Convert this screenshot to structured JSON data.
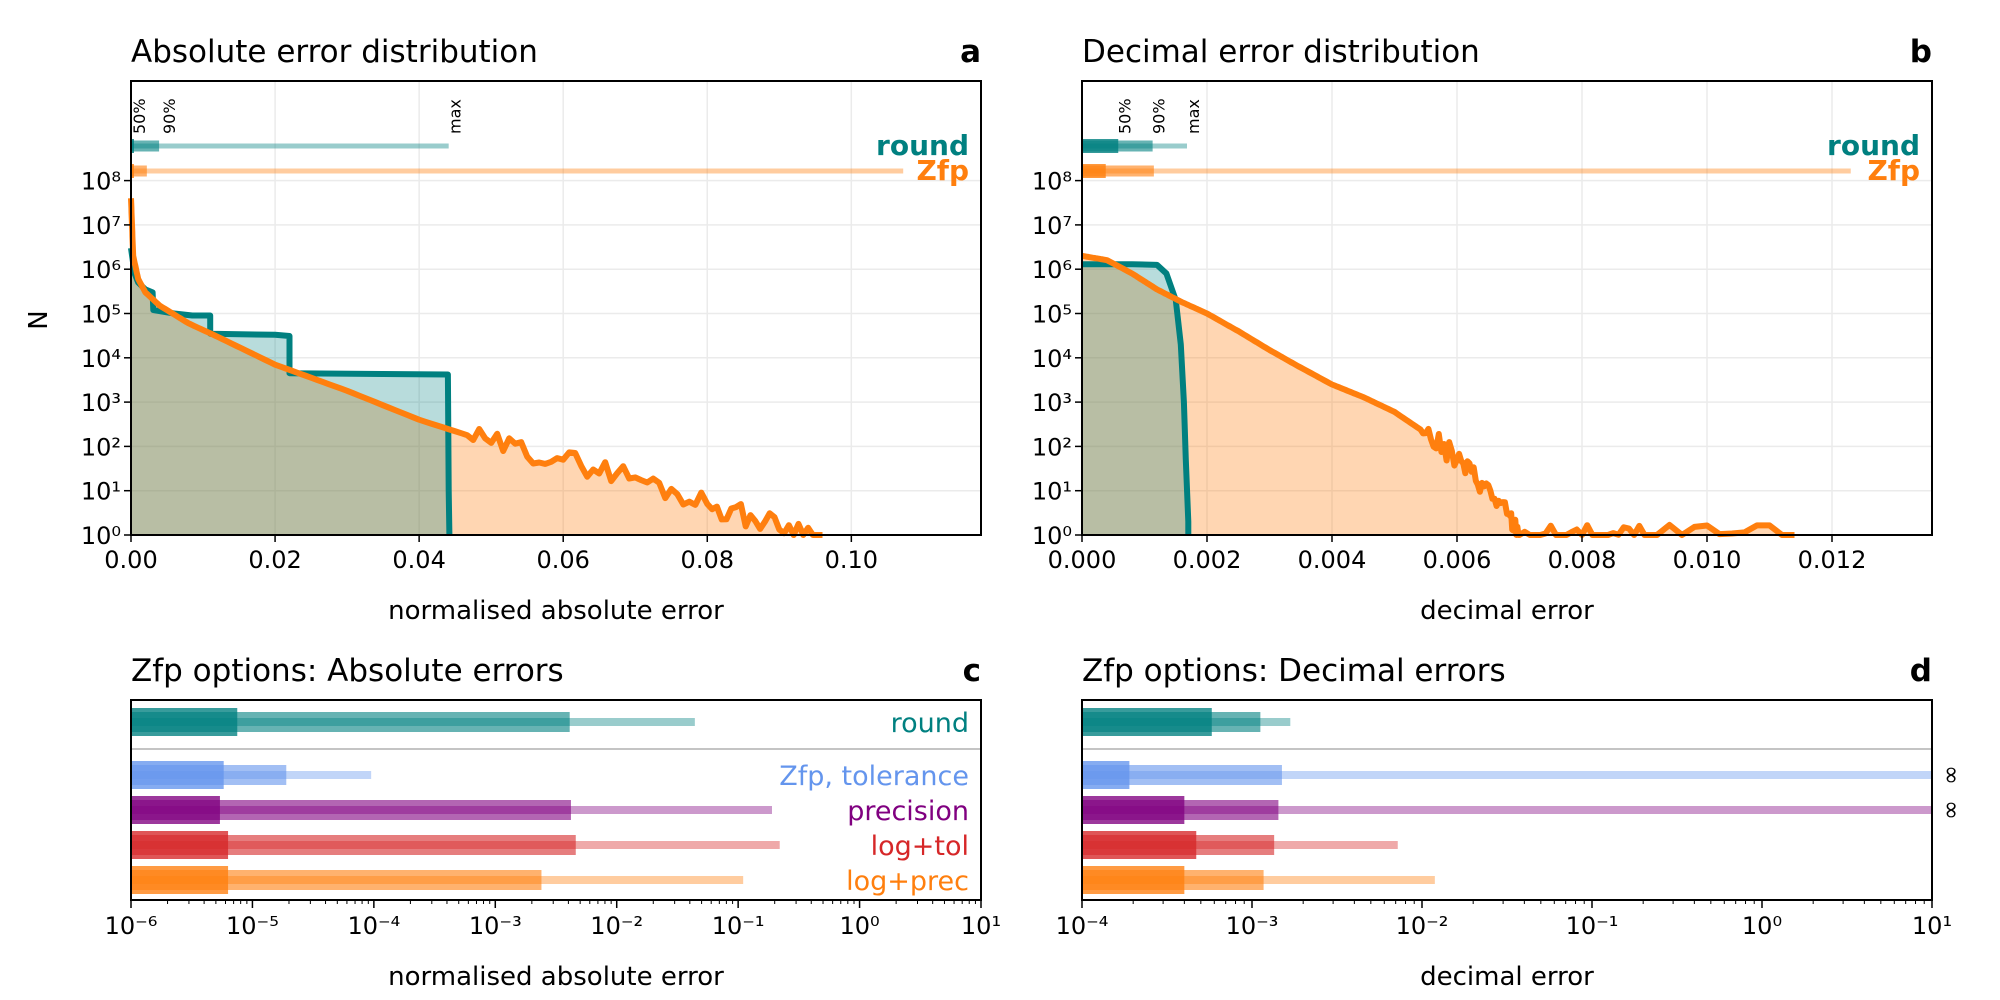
{
  "colors": {
    "round": "#008080",
    "zfp": "#ff7f0e",
    "tolerance": "#6495ed",
    "precision": "#800080",
    "logtol": "#d62728",
    "logprec": "#ff7f0e"
  },
  "chart_data": [
    {
      "panel": "a",
      "type": "area",
      "title": "Absolute error distribution",
      "xlabel": "normalised absolute error",
      "ylabel": "N",
      "xlim": [
        0,
        0.118
      ],
      "ylim": [
        1,
        100000000.0
      ],
      "yscale": "log",
      "grid": true,
      "legend_position": "top-right",
      "xticks": [
        "0.00",
        "0.02",
        "0.04",
        "0.06",
        "0.08",
        "0.10"
      ],
      "yticks": [
        "10⁰",
        "10¹",
        "10²",
        "10³",
        "10⁴",
        "10⁵",
        "10⁶",
        "10⁷",
        "10⁸"
      ],
      "percentile_labels": [
        "50%",
        "90%",
        "max"
      ],
      "series": [
        {
          "name": "round",
          "x": [
            0.0,
            0.0005,
            0.001,
            0.002,
            0.003,
            0.0031,
            0.006,
            0.0085,
            0.011,
            0.011,
            0.02,
            0.022,
            0.022,
            0.035,
            0.044,
            0.0441,
            0.0442
          ],
          "values": [
            3000000.0,
            800000.0,
            500000.0,
            350000.0,
            300000.0,
            120000.0,
            100000.0,
            90000.0,
            90000.0,
            35000.0,
            33000.0,
            31000.0,
            4500.0,
            4300.0,
            4200.0,
            10,
            1
          ],
          "percentiles": {
            "p50": 0.0002,
            "p90": 0.0039,
            "max": 0.0441
          }
        },
        {
          "name": "Zfp",
          "x": [
            0.0,
            0.0003,
            0.001,
            0.002,
            0.004,
            0.008,
            0.012,
            0.02,
            0.03,
            0.04,
            0.05,
            0.06,
            0.07,
            0.08,
            0.088,
            0.096
          ],
          "values": [
            40000000.0,
            2000000.0,
            600000.0,
            300000.0,
            150000.0,
            60000.0,
            30000.0,
            7000.0,
            1800.0,
            400.0,
            120.0,
            50,
            20,
            5,
            2,
            1
          ],
          "percentiles": {
            "p50": 0.0001,
            "p90": 0.0022,
            "max": 0.1072
          }
        }
      ]
    },
    {
      "panel": "b",
      "type": "area",
      "title": "Decimal error distribution",
      "xlabel": "decimal error",
      "ylabel": "",
      "xlim": [
        0,
        0.0136
      ],
      "ylim": [
        1,
        100000000.0
      ],
      "yscale": "log",
      "grid": true,
      "legend_position": "top-right",
      "xticks": [
        "0.000",
        "0.002",
        "0.004",
        "0.006",
        "0.008",
        "0.010",
        "0.012"
      ],
      "yticks": [
        "10⁰",
        "10¹",
        "10²",
        "10³",
        "10⁴",
        "10⁵",
        "10⁶",
        "10⁷",
        "10⁸"
      ],
      "percentile_labels": [
        "50%",
        "90%",
        "max"
      ],
      "series": [
        {
          "name": "round",
          "x": [
            0.0,
            0.0004,
            0.0008,
            0.0012,
            0.00135,
            0.0015,
            0.00158,
            0.00163,
            0.00166,
            0.0017,
            0.0017
          ],
          "values": [
            1300000.0,
            1300000.0,
            1300000.0,
            1250000.0,
            800000.0,
            200000.0,
            20000.0,
            1000.0,
            50,
            2,
            1
          ],
          "percentiles": {
            "p50": 0.00058,
            "p90": 0.00113,
            "max": 0.00168
          }
        },
        {
          "name": "Zfp",
          "x": [
            0.0,
            0.0004,
            0.0008,
            0.0012,
            0.0016,
            0.002,
            0.0025,
            0.003,
            0.0035,
            0.004,
            0.0045,
            0.005,
            0.0055,
            0.006,
            0.0064,
            0.0068,
            0.007,
            0.008,
            0.009,
            0.0114
          ],
          "values": [
            2000000.0,
            1600000.0,
            800000.0,
            350000.0,
            180000.0,
            100000.0,
            40000.0,
            15000.0,
            6000.0,
            2500.0,
            1300.0,
            600,
            200,
            50,
            15,
            3,
            1,
            1,
            1,
            1
          ],
          "percentiles": {
            "p50": 0.00038,
            "p90": 0.00115,
            "max": 0.0123
          }
        }
      ]
    },
    {
      "panel": "c",
      "type": "bar",
      "orientation": "horizontal",
      "title": "Zfp options: Absolute errors",
      "xlabel": "normalised absolute error",
      "xscale": "log",
      "xlim": [
        1e-06,
        10
      ],
      "xticks": [
        "10⁻⁶",
        "10⁻⁵",
        "10⁻⁴",
        "10⁻³",
        "10⁻²",
        "10⁻¹",
        "10⁰",
        "10¹"
      ],
      "bars": [
        {
          "label": "round",
          "color_key": "round",
          "p50": 7.5e-06,
          "p90": 0.0041,
          "max": 0.044
        },
        {
          "label": "Zfp, tolerance",
          "color_key": "tolerance",
          "p50": 5.8e-06,
          "p90": 1.9e-05,
          "max": 9.5e-05
        },
        {
          "label": "precision",
          "color_key": "precision",
          "p50": 5.4e-06,
          "p90": 0.0042,
          "max": 0.19
        },
        {
          "label": "log+tol",
          "color_key": "logtol",
          "p50": 6.3e-06,
          "p90": 0.0046,
          "max": 0.22
        },
        {
          "label": "log+prec",
          "color_key": "logprec",
          "p50": 6.3e-06,
          "p90": 0.0024,
          "max": 0.11
        }
      ]
    },
    {
      "panel": "d",
      "type": "bar",
      "orientation": "horizontal",
      "title": "Zfp options: Decimal errors",
      "xlabel": "decimal error",
      "xscale": "log",
      "xlim": [
        0.0001,
        10
      ],
      "xticks": [
        "10⁻⁴",
        "10⁻³",
        "10⁻²",
        "10⁻¹",
        "10⁰",
        "10¹"
      ],
      "infinity_symbol": "∞",
      "bars": [
        {
          "label": "round",
          "color_key": "round",
          "p50": 0.00058,
          "p90": 0.00112,
          "max": 0.00168,
          "max_infinite": false
        },
        {
          "label": "Zfp, tolerance",
          "color_key": "tolerance",
          "p50": 0.00019,
          "p90": 0.0015,
          "max": 10,
          "max_infinite": true
        },
        {
          "label": "precision",
          "color_key": "precision",
          "p50": 0.0004,
          "p90": 0.00143,
          "max": 10,
          "max_infinite": true
        },
        {
          "label": "log+tol",
          "color_key": "logtol",
          "p50": 0.00047,
          "p90": 0.00135,
          "max": 0.0072,
          "max_infinite": false
        },
        {
          "label": "log+prec",
          "color_key": "logprec",
          "p50": 0.0004,
          "p90": 0.00117,
          "max": 0.0119,
          "max_infinite": false
        }
      ]
    }
  ]
}
